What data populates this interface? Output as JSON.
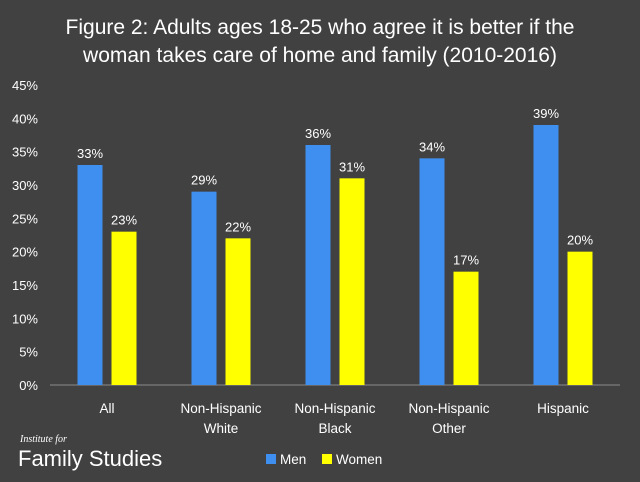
{
  "chart_data": {
    "type": "bar",
    "title_lines": [
      "Figure 2: Adults ages 18-25 who agree it is better if the",
      "woman takes care of home and family (2010-2016)"
    ],
    "categories": [
      [
        "All"
      ],
      [
        "Non-Hispanic",
        "White"
      ],
      [
        "Non-Hispanic",
        "Black"
      ],
      [
        "Non-Hispanic",
        "Other"
      ],
      [
        "Hispanic"
      ]
    ],
    "series": [
      {
        "name": "Men",
        "color": "#3f8ff0",
        "values": [
          33,
          29,
          36,
          34,
          39
        ],
        "labels": [
          "33%",
          "29%",
          "36%",
          "34%",
          "39%"
        ]
      },
      {
        "name": "Women",
        "color": "#ffff00",
        "values": [
          23,
          22,
          31,
          17,
          20
        ],
        "labels": [
          "23%",
          "22%",
          "31%",
          "17%",
          "20%"
        ]
      }
    ],
    "ylim": [
      0,
      45
    ],
    "yticks": [
      "0%",
      "5%",
      "10%",
      "15%",
      "20%",
      "25%",
      "30%",
      "35%",
      "40%",
      "45%"
    ],
    "xlabel": "",
    "ylabel": "",
    "legend": "bottom"
  },
  "branding": {
    "small": "Institute for",
    "big": "Family Studies"
  }
}
